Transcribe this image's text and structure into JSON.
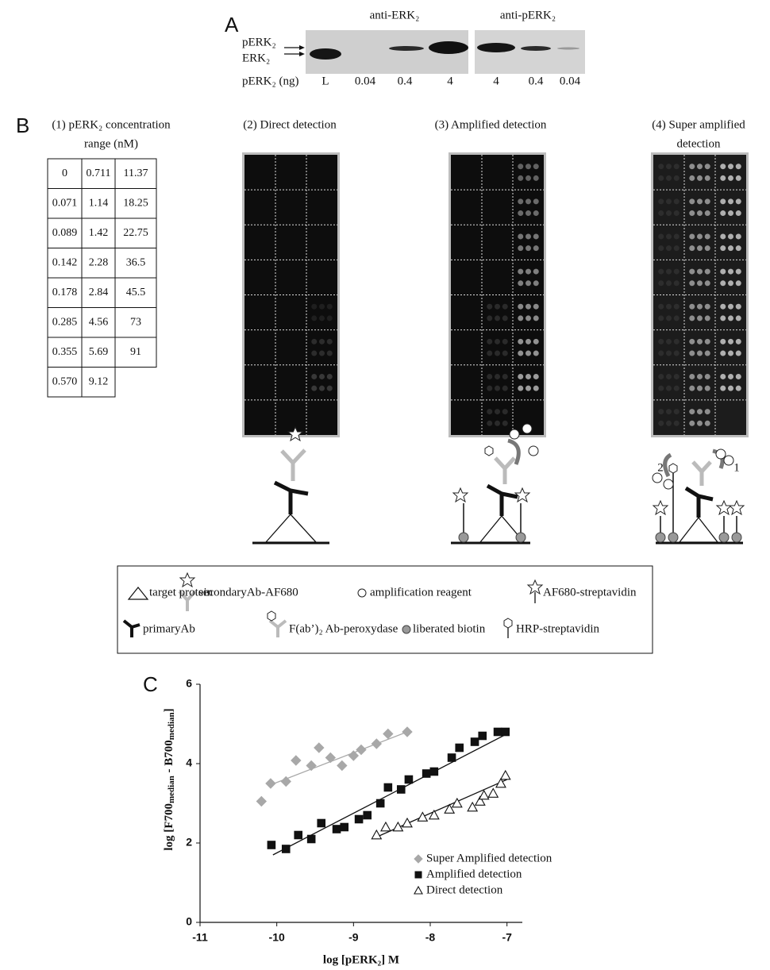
{
  "panel_a": {
    "label": "A",
    "blots": [
      "anti-ERK₂",
      "anti-pERK₂"
    ],
    "bands": [
      "pERK₂",
      "ERK₂"
    ],
    "lane_title": "pERK₂ (ng)",
    "lanes": [
      "L",
      "0.04",
      "0.4",
      "4",
      "4",
      "0.4",
      "0.04"
    ]
  },
  "panel_b": {
    "label": "B",
    "titles": [
      [
        "(1) pERK₂ concentration",
        "range (nM)"
      ],
      [
        "(2) Direct detection"
      ],
      [
        "(3) Amplified detection"
      ],
      [
        "(4) Super amplified",
        "detection"
      ]
    ],
    "table": {
      "rows": [
        [
          "0",
          "0.711",
          "11.37"
        ],
        [
          "0.071",
          "1.14",
          "18.25"
        ],
        [
          "0.089",
          "1.42",
          "22.75"
        ],
        [
          "0.142",
          "2.28",
          "36.5"
        ],
        [
          "0.178",
          "2.84",
          "45.5"
        ],
        [
          "0.285",
          "4.56",
          "73"
        ],
        [
          "0.355",
          "5.69",
          "91"
        ],
        [
          "0.570",
          "9.12"
        ]
      ]
    },
    "schematic_labels": [
      "2",
      "1"
    ],
    "legend": [
      "target protein",
      "secondaryAb-AF680",
      "amplification reagent",
      "AF680-streptavidin",
      "primaryAb",
      "F(ab’)₂ Ab-peroxydase",
      "liberated biotin",
      "HRP-streptavidin"
    ]
  },
  "chart_data": {
    "panel_label": "C",
    "type": "scatter",
    "xlabel": "log [pERK₂] M",
    "ylabel": [
      "log [F700",
      "median",
      " - B700",
      "median",
      "]"
    ],
    "xlim": [
      -11,
      -6.8
    ],
    "ylim": [
      0,
      6
    ],
    "xticks": [
      -11,
      -10,
      -9,
      -8,
      -7
    ],
    "yticks": [
      0,
      2,
      4,
      6
    ],
    "series": [
      {
        "name": "Super Amplified detection",
        "color": "#a8a8a8",
        "marker": "diamond",
        "filled": true,
        "x": [
          -10.2,
          -10.08,
          -9.88,
          -9.75,
          -9.55,
          -9.45,
          -9.3,
          -9.15,
          -9.0,
          -8.9,
          -8.7,
          -8.55,
          -8.3
        ],
        "values": [
          3.05,
          3.5,
          3.55,
          4.08,
          3.95,
          4.4,
          4.15,
          3.95,
          4.2,
          4.35,
          4.5,
          4.75,
          4.8
        ],
        "fit_x": [
          -10.1,
          -8.3
        ],
        "fit_values": [
          3.45,
          4.8
        ]
      },
      {
        "name": "Amplified detection",
        "color": "#111111",
        "marker": "square",
        "filled": true,
        "x": [
          -10.07,
          -9.88,
          -9.72,
          -9.55,
          -9.42,
          -9.22,
          -9.12,
          -8.93,
          -8.82,
          -8.65,
          -8.55,
          -8.38,
          -8.28,
          -8.05,
          -7.95,
          -7.72,
          -7.62,
          -7.42,
          -7.32,
          -7.12,
          -7.02
        ],
        "values": [
          1.95,
          1.85,
          2.2,
          2.1,
          2.5,
          2.35,
          2.4,
          2.6,
          2.7,
          3.0,
          3.4,
          3.35,
          3.6,
          3.75,
          3.8,
          4.15,
          4.4,
          4.55,
          4.7,
          4.8,
          4.8
        ],
        "fit_x": [
          -10.05,
          -7.0
        ],
        "fit_values": [
          1.7,
          4.75
        ]
      },
      {
        "name": "Direct detection",
        "color": "#111111",
        "marker": "triangle",
        "filled": false,
        "x": [
          -8.7,
          -8.58,
          -8.42,
          -8.3,
          -8.1,
          -7.95,
          -7.75,
          -7.65,
          -7.45,
          -7.35,
          -7.3,
          -7.18,
          -7.08,
          -7.02
        ],
        "values": [
          2.2,
          2.4,
          2.4,
          2.5,
          2.65,
          2.7,
          2.85,
          3.0,
          2.9,
          3.05,
          3.2,
          3.25,
          3.5,
          3.7
        ],
        "fit_x": [
          -8.7,
          -7.0
        ],
        "fit_values": [
          2.15,
          3.6
        ]
      }
    ]
  }
}
